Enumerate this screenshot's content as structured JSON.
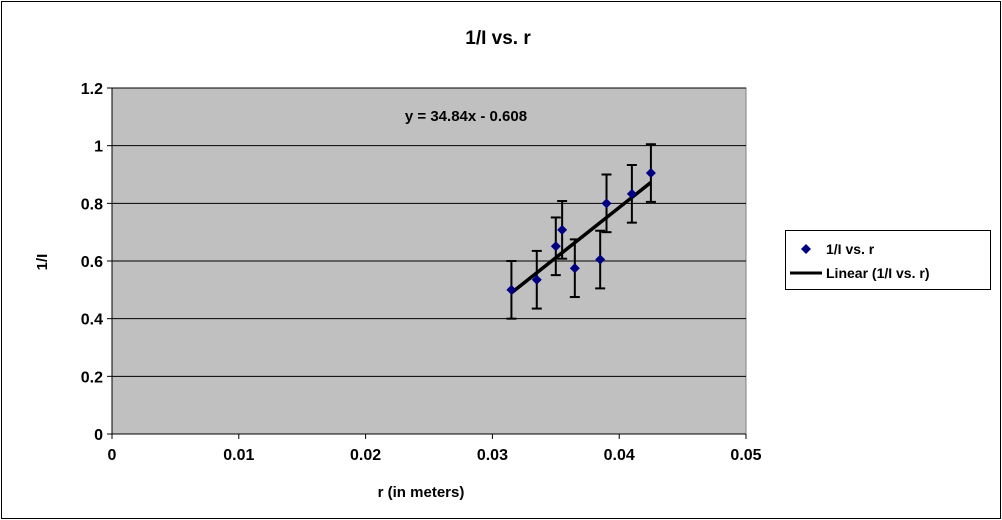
{
  "chart_data": {
    "type": "scatter",
    "title": "1/I vs. r",
    "xlabel": "r (in meters)",
    "ylabel": "1/I",
    "xlim": [
      0,
      0.05
    ],
    "ylim": [
      0,
      1.2
    ],
    "xticks": [
      "0",
      "0.01",
      "0.02",
      "0.03",
      "0.04",
      "0.05"
    ],
    "yticks": [
      "0",
      "0.2",
      "0.4",
      "0.6",
      "0.8",
      "1",
      "1.2"
    ],
    "grid": "horizontal major gridlines",
    "plot_background": "#c0c0c0",
    "legend_placement": "right",
    "series": [
      {
        "name": "1/I vs. r",
        "marker": "diamond",
        "color": "#000080",
        "x": [
          0.0315,
          0.0335,
          0.035,
          0.0355,
          0.0365,
          0.0385,
          0.039,
          0.041,
          0.0425
        ],
        "y": [
          0.5,
          0.535,
          0.651,
          0.708,
          0.575,
          0.605,
          0.8,
          0.833,
          0.905
        ],
        "y_error": 0.1
      }
    ],
    "trendline": {
      "name": "Linear (1/I vs. r)",
      "slope": 34.84,
      "intercept": -0.608,
      "x_range": [
        0.0315,
        0.0425
      ],
      "color": "#000000",
      "equation": "y = 34.84x - 0.608"
    }
  }
}
